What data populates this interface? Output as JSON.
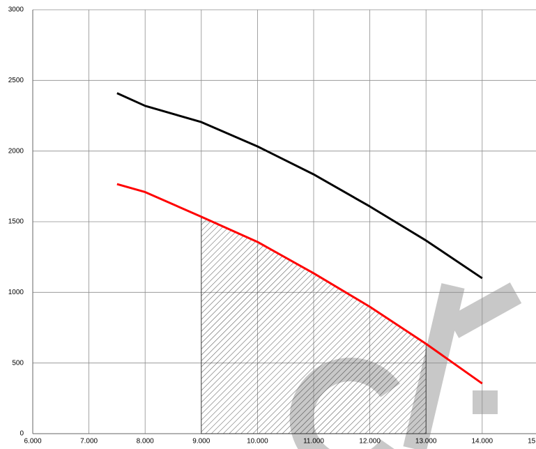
{
  "chart_data": {
    "type": "line",
    "x": [
      7500,
      8000,
      9000,
      10000,
      11000,
      12000,
      13000,
      14000
    ],
    "series": [
      {
        "color": "#000000",
        "values": [
          2410,
          2320,
          2205,
          2033,
          1835,
          1608,
          1367,
          1100
        ]
      },
      {
        "color": "#ff0000",
        "values": [
          1766,
          1710,
          1535,
          1357,
          1135,
          898,
          636,
          355
        ]
      }
    ],
    "shade_xlim": [
      9000,
      13000
    ],
    "xlim": [
      6000,
      15000
    ],
    "xticks": [
      {
        "value": 6000,
        "label": "6.000"
      },
      {
        "value": 7000,
        "label": "7.000"
      },
      {
        "value": 8000,
        "label": "8.000"
      },
      {
        "value": 9000,
        "label": "9.000"
      },
      {
        "value": 10000,
        "label": "10.000"
      },
      {
        "value": 11000,
        "label": "11.000"
      },
      {
        "value": 12000,
        "label": "12.000"
      },
      {
        "value": 13000,
        "label": "13.000"
      },
      {
        "value": 14000,
        "label": "14.000"
      },
      {
        "value": 15000,
        "label": "15.000"
      }
    ],
    "ylim": [
      0,
      3000
    ],
    "yticks": [
      0,
      500,
      1000,
      1500,
      2000,
      2500,
      3000
    ],
    "grid": true
  }
}
